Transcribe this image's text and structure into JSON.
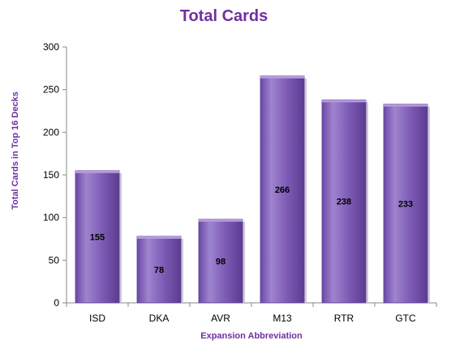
{
  "chart_data": {
    "type": "bar",
    "title": "Total Cards",
    "xlabel": "Expansion Abbreviation",
    "ylabel": "Total Cards in Top 16 Decks",
    "categories": [
      "ISD",
      "DKA",
      "AVR",
      "M13",
      "RTR",
      "GTC"
    ],
    "values": [
      155,
      78,
      98,
      266,
      238,
      233
    ],
    "ylim": [
      0,
      300
    ],
    "yticks": [
      0,
      50,
      100,
      150,
      200,
      250,
      300
    ],
    "grid": false,
    "legend": "none",
    "colors": {
      "bar_light": "#9B7FCB",
      "bar_main": "#7E5CB6",
      "bar_dark": "#5E3F94",
      "title": "#7030A0",
      "axis_text": "#7030A0"
    }
  }
}
